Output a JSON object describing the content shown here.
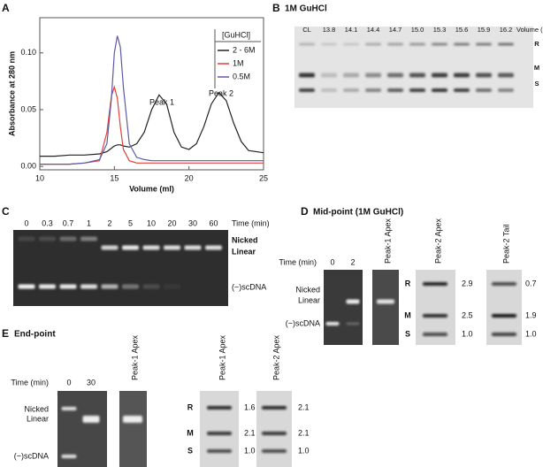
{
  "chart_data": {
    "type": "line",
    "panel_label": "A",
    "xlabel": "Volume (ml)",
    "ylabel": "Absorbance at 280 nm",
    "x": [
      10,
      11,
      12,
      13,
      14,
      14.5,
      14.8,
      15,
      15.2,
      15.4,
      15.6,
      16,
      16.5,
      17,
      17.5,
      18,
      18.5,
      19,
      19.5,
      20,
      20.5,
      21,
      21.5,
      22,
      22.5,
      23,
      23.5,
      24,
      25
    ],
    "series": [
      {
        "name": "2 - 6M",
        "color": "#222222",
        "values": [
          0.009,
          0.009,
          0.01,
          0.01,
          0.011,
          0.013,
          0.016,
          0.018,
          0.019,
          0.019,
          0.018,
          0.017,
          0.02,
          0.03,
          0.05,
          0.063,
          0.055,
          0.03,
          0.017,
          0.015,
          0.02,
          0.035,
          0.055,
          0.065,
          0.058,
          0.038,
          0.022,
          0.014,
          0.012
        ]
      },
      {
        "name": "1M",
        "color": "#e0413b",
        "values": [
          0.002,
          0.002,
          0.002,
          0.003,
          0.005,
          0.03,
          0.062,
          0.07,
          0.06,
          0.035,
          0.015,
          0.005,
          0.003,
          0.003,
          0.003,
          0.003,
          0.003,
          0.003,
          0.003,
          0.003,
          0.003,
          0.003,
          0.003,
          0.003,
          0.003,
          0.003,
          0.003,
          0.003,
          0.003
        ]
      },
      {
        "name": "0.5M",
        "color": "#5a5aa8",
        "values": [
          0.002,
          0.002,
          0.002,
          0.003,
          0.006,
          0.02,
          0.06,
          0.1,
          0.115,
          0.105,
          0.07,
          0.02,
          0.008,
          0.006,
          0.005,
          0.005,
          0.005,
          0.005,
          0.005,
          0.005,
          0.005,
          0.005,
          0.005,
          0.005,
          0.005,
          0.005,
          0.005,
          0.005,
          0.005
        ]
      }
    ],
    "xlim": [
      10,
      25
    ],
    "xticks": [
      10,
      15,
      20,
      25
    ],
    "ylim": [
      -0.003,
      0.131
    ],
    "yticks": [
      {
        "value": 0,
        "label": "0.00"
      },
      {
        "value": 0.05,
        "label": "0.05"
      },
      {
        "value": 0.1,
        "label": "0.10"
      }
    ],
    "legend_title": "[GuHCl]",
    "legend": "upper right",
    "annotations": [
      "Peak 1",
      "Peak 2"
    ]
  },
  "panel_b": {
    "label": "B",
    "title": "1M GuHCl",
    "lanes": [
      "CL",
      "13.8",
      "14.1",
      "14.4",
      "14.7",
      "15.0",
      "15.3",
      "15.6",
      "15.9",
      "16.2"
    ],
    "lanes_label": "Volume (ml)",
    "bands": [
      "R",
      "M",
      "S"
    ]
  },
  "panel_c": {
    "label": "C",
    "times": [
      "0",
      "0.3",
      "0.7",
      "1",
      "2",
      "5",
      "10",
      "20",
      "30",
      "60"
    ],
    "time_label": "Time (min)",
    "bands": [
      "Nicked",
      "Linear",
      "(−)scDNA"
    ]
  },
  "panel_d": {
    "label": "D",
    "title": "Mid-point (1M GuHCl)",
    "time_label": "Time (min)",
    "times": [
      "0",
      "2"
    ],
    "dna_bands": [
      "Nicked",
      "Linear",
      "(−)scDNA"
    ],
    "samples": [
      "Peak-1 Apex",
      "Peak-2  Apex",
      "Peak-2 Tail"
    ],
    "topo_bands": [
      "R",
      "M",
      "S"
    ],
    "ratios": [
      [
        "2.9",
        "2.5",
        "1.0"
      ],
      [
        "0.7",
        "1.9",
        "1.0"
      ]
    ]
  },
  "panel_e": {
    "label": "E",
    "title": "End-point",
    "time_label": "Time (min)",
    "times": [
      "0",
      "30"
    ],
    "dna_bands": [
      "Nicked",
      "Linear",
      "(−)scDNA"
    ],
    "samples": [
      "Peak-1 Apex",
      "Peak-1 Apex",
      "Peak-2 Apex"
    ],
    "topo_bands": [
      "R",
      "M",
      "S"
    ],
    "ratios": [
      [
        "1.6",
        "2.1",
        "1.0"
      ],
      [
        "2.1",
        "2.1",
        "1.0"
      ]
    ]
  }
}
